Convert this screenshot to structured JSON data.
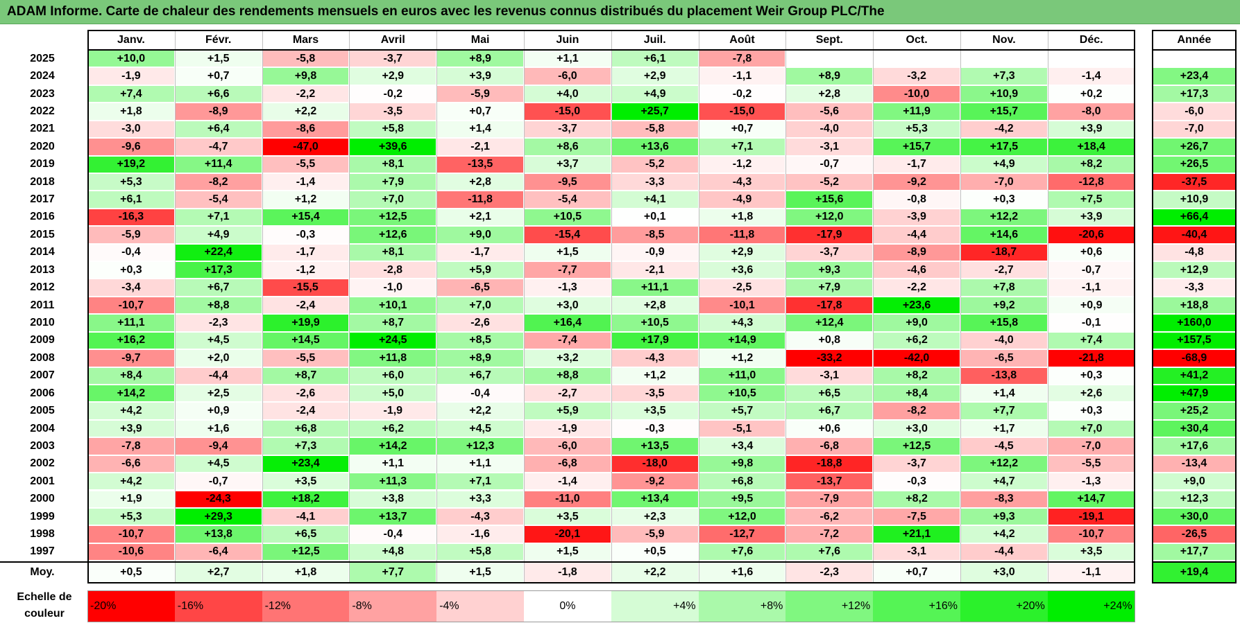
{
  "title": "ADAM Informe. Carte de chaleur des rendements mensuels en euros avec les revenus connus distribués du placement Weir Group PLC/The",
  "chart_data": {
    "type": "heatmap",
    "title": "ADAM Informe. Carte de chaleur des rendements mensuels en euros avec les revenus connus distribués du placement Weir Group PLC/The",
    "columns": [
      "Janv.",
      "Févr.",
      "Mars",
      "Avril",
      "Mai",
      "Juin",
      "Juil.",
      "Août",
      "Sept.",
      "Oct.",
      "Nov.",
      "Déc."
    ],
    "year_column_label": "Année",
    "rows": [
      {
        "year": "2025",
        "months": [
          "+10,0",
          "+1,5",
          "-5,8",
          "-3,7",
          "+8,9",
          "+1,1",
          "+6,1",
          "-7,8",
          "",
          "",
          "",
          ""
        ],
        "annual": ""
      },
      {
        "year": "2024",
        "months": [
          "-1,9",
          "+0,7",
          "+9,8",
          "+2,9",
          "+3,9",
          "-6,0",
          "+2,9",
          "-1,1",
          "+8,9",
          "-3,2",
          "+7,3",
          "-1,4"
        ],
        "annual": "+23,4"
      },
      {
        "year": "2023",
        "months": [
          "+7,4",
          "+6,6",
          "-2,2",
          "-0,2",
          "-5,9",
          "+4,0",
          "+4,9",
          "-0,2",
          "+2,8",
          "-10,0",
          "+10,9",
          "+0,2"
        ],
        "annual": "+17,3"
      },
      {
        "year": "2022",
        "months": [
          "+1,8",
          "-8,9",
          "+2,2",
          "-3,5",
          "+0,7",
          "-15,0",
          "+25,7",
          "-15,0",
          "-5,6",
          "+11,9",
          "+15,7",
          "-8,0"
        ],
        "annual": "-6,0"
      },
      {
        "year": "2021",
        "months": [
          "-3,0",
          "+6,4",
          "-8,6",
          "+5,8",
          "+1,4",
          "-3,7",
          "-5,8",
          "+0,7",
          "-4,0",
          "+5,3",
          "-4,2",
          "+3,9"
        ],
        "annual": "-7,0"
      },
      {
        "year": "2020",
        "months": [
          "-9,6",
          "-4,7",
          "-47,0",
          "+39,6",
          "-2,1",
          "+8,6",
          "+13,6",
          "+7,1",
          "-3,1",
          "+15,7",
          "+17,5",
          "+18,4"
        ],
        "annual": "+26,7"
      },
      {
        "year": "2019",
        "months": [
          "+19,2",
          "+11,4",
          "-5,5",
          "+8,1",
          "-13,5",
          "+3,7",
          "-5,2",
          "-1,2",
          "-0,7",
          "-1,7",
          "+4,9",
          "+8,2"
        ],
        "annual": "+26,5"
      },
      {
        "year": "2018",
        "months": [
          "+5,3",
          "-8,2",
          "-1,4",
          "+7,9",
          "+2,8",
          "-9,5",
          "-3,3",
          "-4,3",
          "-5,2",
          "-9,2",
          "-7,0",
          "-12,8"
        ],
        "annual": "-37,5"
      },
      {
        "year": "2017",
        "months": [
          "+6,1",
          "-5,4",
          "+1,2",
          "+7,0",
          "-11,8",
          "-5,4",
          "+4,1",
          "-4,9",
          "+15,6",
          "-0,8",
          "+0,3",
          "+7,5"
        ],
        "annual": "+10,9"
      },
      {
        "year": "2016",
        "months": [
          "-16,3",
          "+7,1",
          "+15,4",
          "+12,5",
          "+2,1",
          "+10,5",
          "+0,1",
          "+1,8",
          "+12,0",
          "-3,9",
          "+12,2",
          "+3,9"
        ],
        "annual": "+66,4"
      },
      {
        "year": "2015",
        "months": [
          "-5,9",
          "+4,9",
          "-0,3",
          "+12,6",
          "+9,0",
          "-15,4",
          "-8,5",
          "-11,8",
          "-17,9",
          "-4,4",
          "+14,6",
          "-20,6"
        ],
        "annual": "-40,4"
      },
      {
        "year": "2014",
        "months": [
          "-0,4",
          "+22,4",
          "-1,7",
          "+8,1",
          "-1,7",
          "+1,5",
          "-0,9",
          "+2,9",
          "-3,7",
          "-8,9",
          "-18,7",
          "+0,6"
        ],
        "annual": "-4,8"
      },
      {
        "year": "2013",
        "months": [
          "+0,3",
          "+17,3",
          "-1,2",
          "-2,8",
          "+5,9",
          "-7,7",
          "-2,1",
          "+3,6",
          "+9,3",
          "-4,6",
          "-2,7",
          "-0,7"
        ],
        "annual": "+12,9"
      },
      {
        "year": "2012",
        "months": [
          "-3,4",
          "+6,7",
          "-15,5",
          "-1,0",
          "-6,5",
          "-1,3",
          "+11,1",
          "-2,5",
          "+7,9",
          "-2,2",
          "+7,8",
          "-1,1"
        ],
        "annual": "-3,3"
      },
      {
        "year": "2011",
        "months": [
          "-10,7",
          "+8,8",
          "-2,4",
          "+10,1",
          "+7,0",
          "+3,0",
          "+2,8",
          "-10,1",
          "-17,8",
          "+23,6",
          "+9,2",
          "+0,9"
        ],
        "annual": "+18,8"
      },
      {
        "year": "2010",
        "months": [
          "+11,1",
          "-2,3",
          "+19,9",
          "+8,7",
          "-2,6",
          "+16,4",
          "+10,5",
          "+4,3",
          "+12,4",
          "+9,0",
          "+15,8",
          "-0,1"
        ],
        "annual": "+160,0"
      },
      {
        "year": "2009",
        "months": [
          "+16,2",
          "+4,5",
          "+14,5",
          "+24,5",
          "+8,5",
          "-7,4",
          "+17,9",
          "+14,9",
          "+0,8",
          "+6,2",
          "-4,0",
          "+7,4"
        ],
        "annual": "+157,5"
      },
      {
        "year": "2008",
        "months": [
          "-9,7",
          "+2,0",
          "-5,5",
          "+11,8",
          "+8,9",
          "+3,2",
          "-4,3",
          "+1,2",
          "-33,2",
          "-42,0",
          "-6,5",
          "-21,8"
        ],
        "annual": "-68,9"
      },
      {
        "year": "2007",
        "months": [
          "+8,4",
          "-4,4",
          "+8,7",
          "+6,0",
          "+6,7",
          "+8,8",
          "+1,2",
          "+11,0",
          "-3,1",
          "+8,2",
          "-13,8",
          "+0,3"
        ],
        "annual": "+41,2"
      },
      {
        "year": "2006",
        "months": [
          "+14,2",
          "+2,5",
          "-2,6",
          "+5,0",
          "-0,4",
          "-2,7",
          "-3,5",
          "+10,5",
          "+6,5",
          "+8,4",
          "+1,4",
          "+2,6"
        ],
        "annual": "+47,9"
      },
      {
        "year": "2005",
        "months": [
          "+4,2",
          "+0,9",
          "-2,4",
          "-1,9",
          "+2,2",
          "+5,9",
          "+3,5",
          "+5,7",
          "+6,7",
          "-8,2",
          "+7,7",
          "+0,3"
        ],
        "annual": "+25,2"
      },
      {
        "year": "2004",
        "months": [
          "+3,9",
          "+1,6",
          "+6,8",
          "+6,2",
          "+4,5",
          "-1,9",
          "-0,3",
          "-5,1",
          "+0,6",
          "+3,0",
          "+1,7",
          "+7,0"
        ],
        "annual": "+30,4"
      },
      {
        "year": "2003",
        "months": [
          "-7,8",
          "-9,4",
          "+7,3",
          "+14,2",
          "+12,3",
          "-6,0",
          "+13,5",
          "+3,4",
          "-6,8",
          "+12,5",
          "-4,5",
          "-7,0"
        ],
        "annual": "+17,6"
      },
      {
        "year": "2002",
        "months": [
          "-6,6",
          "+4,5",
          "+23,4",
          "+1,1",
          "+1,1",
          "-6,8",
          "-18,0",
          "+9,8",
          "-18,8",
          "-3,7",
          "+12,2",
          "-5,5"
        ],
        "annual": "-13,4"
      },
      {
        "year": "2001",
        "months": [
          "+4,2",
          "-0,7",
          "+3,5",
          "+11,3",
          "+7,1",
          "-1,4",
          "-9,2",
          "+6,8",
          "-13,7",
          "-0,3",
          "+4,7",
          "-1,3"
        ],
        "annual": "+9,0"
      },
      {
        "year": "2000",
        "months": [
          "+1,9",
          "-24,3",
          "+18,2",
          "+3,8",
          "+3,3",
          "-11,0",
          "+13,4",
          "+9,5",
          "-7,9",
          "+8,2",
          "-8,3",
          "+14,7"
        ],
        "annual": "+12,3"
      },
      {
        "year": "1999",
        "months": [
          "+5,3",
          "+29,3",
          "-4,1",
          "+13,7",
          "-4,3",
          "+3,5",
          "+2,3",
          "+12,0",
          "-6,2",
          "-7,5",
          "+9,3",
          "-19,1"
        ],
        "annual": "+30,0"
      },
      {
        "year": "1998",
        "months": [
          "-10,7",
          "+13,8",
          "+6,5",
          "-0,4",
          "-1,6",
          "-20,1",
          "-5,9",
          "-12,7",
          "-7,2",
          "+21,1",
          "+4,2",
          "-10,7"
        ],
        "annual": "-26,5"
      },
      {
        "year": "1997",
        "months": [
          "-10,6",
          "-6,4",
          "+12,5",
          "+4,8",
          "+5,8",
          "+1,5",
          "+0,5",
          "+7,6",
          "+7,6",
          "-3,1",
          "-4,4",
          "+3,5"
        ],
        "annual": "+17,7"
      }
    ],
    "average": {
      "label": "Moy.",
      "months": [
        "+0,5",
        "+2,7",
        "+1,8",
        "+7,7",
        "+1,5",
        "-1,8",
        "+2,2",
        "+1,6",
        "-2,3",
        "+0,7",
        "+3,0",
        "-1,1"
      ],
      "annual": "+19,4"
    },
    "scale": {
      "label": "Echelle de couleur",
      "steps": [
        {
          "label": "-20%",
          "value": -20
        },
        {
          "label": "-16%",
          "value": -16
        },
        {
          "label": "-12%",
          "value": -12
        },
        {
          "label": "-8%",
          "value": -8
        },
        {
          "label": "-4%",
          "value": -4
        },
        {
          "label": "0%",
          "value": 0
        },
        {
          "label": "+4%",
          "value": 4
        },
        {
          "label": "+8%",
          "value": 8
        },
        {
          "label": "+12%",
          "value": 12
        },
        {
          "label": "+16%",
          "value": 16
        },
        {
          "label": "+20%",
          "value": 20
        },
        {
          "label": "+24%",
          "value": 24
        }
      ]
    },
    "colors": {
      "negative_max": "#ff0000",
      "neutral": "#ffffff",
      "positive_max": "#00ee00",
      "title_background": "#7ac87a"
    }
  }
}
